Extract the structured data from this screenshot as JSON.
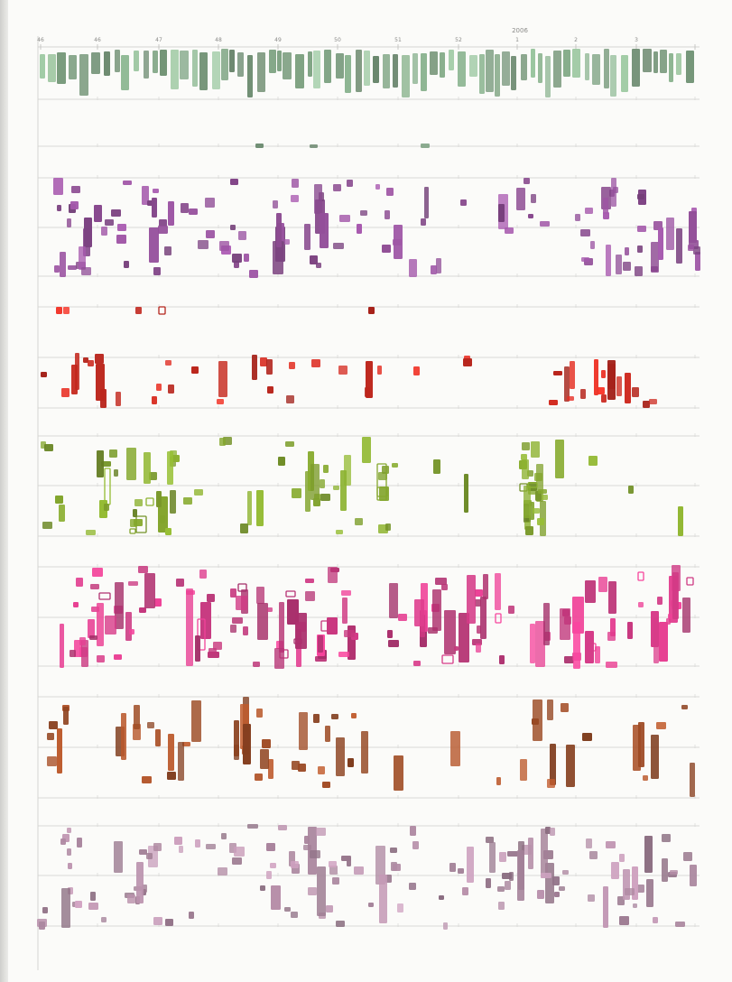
{
  "axis": {
    "year_label": "2006",
    "ticks": [
      "46",
      "46",
      "47",
      "48",
      "49",
      "50",
      "51",
      "52",
      "1",
      "2",
      "3"
    ]
  },
  "colors": {
    "paper": "#fbfbf9",
    "rule": "#cfcfcc",
    "sage_green": "#7fa383",
    "plum": "#8c4b92",
    "vermilion": "#c8281e",
    "olive_green": "#7a9a2a",
    "magenta": "#c8377f",
    "sienna": "#9c4a24",
    "mauve": "#a8849c"
  }
}
